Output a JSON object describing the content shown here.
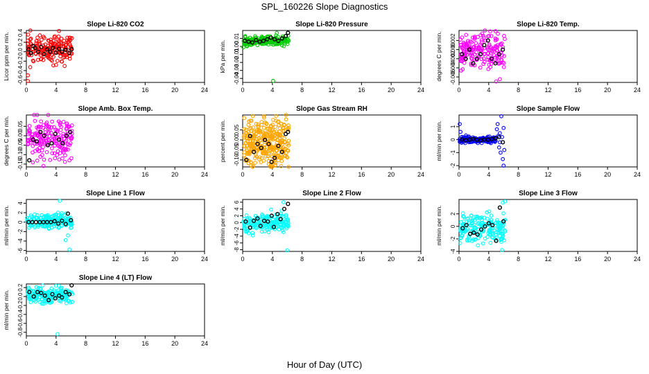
{
  "figure": {
    "title": "SPL_160226  Slope Diagnostics",
    "xlabel": "Hour of Day (UTC)"
  },
  "colors": {
    "axis": "#000000",
    "red": "#ff0000",
    "green": "#00cc00",
    "magenta": "#ff00ff",
    "orange": "#ffa500",
    "blue": "#0000ff",
    "cyan": "#00ffff",
    "black": "#000000"
  },
  "chart_data": [
    {
      "type": "scatter",
      "title": "Slope Li-820 CO2",
      "ylabel": "Licor ppm per min.",
      "xlim": [
        0,
        24
      ],
      "ylim": [
        -0.65,
        0.45
      ],
      "xticks": [
        0,
        4,
        8,
        12,
        16,
        20,
        24
      ],
      "yticks": [
        -0.6,
        -0.4,
        -0.2,
        0.0,
        0.2,
        0.4
      ],
      "color": "red",
      "scatter": {
        "x_range": [
          0.1,
          6.2
        ],
        "y_center": 0.05,
        "y_spread": 0.14,
        "count": 170,
        "seed": 11
      },
      "x_extra": [
        [
          0.2,
          -0.62
        ],
        [
          0.2,
          -0.5
        ],
        [
          4.4,
          0.44
        ],
        [
          4.0,
          -0.28
        ],
        [
          1.5,
          0.3
        ]
      ],
      "black_points": [
        [
          0.3,
          0.05
        ],
        [
          0.6,
          -0.03
        ],
        [
          0.9,
          0.12
        ],
        [
          1.2,
          0.08
        ],
        [
          1.6,
          0.0
        ],
        [
          2.0,
          0.1
        ],
        [
          2.4,
          -0.05
        ],
        [
          2.8,
          0.05
        ],
        [
          3.2,
          0.0
        ],
        [
          3.6,
          0.08
        ],
        [
          4.0,
          -0.02
        ],
        [
          4.4,
          0.06
        ],
        [
          4.8,
          0.0
        ],
        [
          5.3,
          0.04
        ],
        [
          5.8,
          -0.03
        ],
        [
          6.1,
          0.05
        ]
      ]
    },
    {
      "type": "scatter",
      "title": "Slope Li-820 Pressure",
      "ylabel": "kPa per min.",
      "xlim": [
        0,
        24
      ],
      "ylim": [
        -0.045,
        0.02
      ],
      "xticks": [
        0,
        4,
        8,
        12,
        16,
        20,
        24
      ],
      "yticks": [
        -0.04,
        -0.03,
        -0.02,
        -0.01,
        0.0,
        0.01
      ],
      "color": "green",
      "scatter": {
        "x_range": [
          0.1,
          6.2
        ],
        "y_center": 0.007,
        "y_spread": 0.003,
        "count": 170,
        "seed": 23
      },
      "x_extra": [
        [
          0.1,
          -0.001
        ],
        [
          4.1,
          -0.043
        ],
        [
          4.6,
          0.017
        ],
        [
          0.3,
          0.004
        ]
      ],
      "black_points": [
        [
          0.3,
          0.007
        ],
        [
          0.8,
          0.006
        ],
        [
          1.3,
          0.005
        ],
        [
          1.8,
          0.008
        ],
        [
          2.3,
          0.006
        ],
        [
          2.8,
          0.007
        ],
        [
          3.3,
          0.009
        ],
        [
          3.8,
          0.011
        ],
        [
          4.3,
          0.009
        ],
        [
          4.8,
          0.007
        ],
        [
          5.3,
          0.01
        ],
        [
          5.8,
          0.013
        ],
        [
          6.1,
          0.017
        ]
      ]
    },
    {
      "type": "scatter",
      "title": "Slope Li-820 Temp.",
      "ylabel": "degrees C per min.",
      "xlim": [
        0,
        24
      ],
      "ylim": [
        -0.0072,
        0.0042
      ],
      "xticks": [
        0,
        4,
        8,
        12,
        16,
        20,
        24
      ],
      "yticks": [
        -0.006,
        -0.004,
        -0.002,
        0.0,
        0.002
      ],
      "color": "magenta",
      "scatter": {
        "x_range": [
          0.1,
          6.2
        ],
        "y_center": -0.0006,
        "y_spread": 0.0018,
        "count": 180,
        "seed": 37
      },
      "x_extra": [
        [
          5.0,
          -0.007
        ],
        [
          4.2,
          0.004
        ],
        [
          5.5,
          -0.0065
        ]
      ],
      "black_points": [
        [
          0.4,
          -0.001
        ],
        [
          0.9,
          -0.002
        ],
        [
          1.4,
          0.0
        ],
        [
          1.9,
          -0.003
        ],
        [
          2.4,
          -0.002
        ],
        [
          2.9,
          -0.001
        ],
        [
          3.4,
          0.001
        ],
        [
          3.9,
          0.002
        ],
        [
          4.4,
          -0.002
        ],
        [
          4.9,
          -0.003
        ],
        [
          5.4,
          -0.001
        ],
        [
          5.9,
          0.0
        ]
      ]
    },
    {
      "type": "scatter",
      "title": "Slope Amb. Box Temp.",
      "ylabel": "degrees C per min.",
      "xlim": [
        0,
        24
      ],
      "ylim": [
        -0.165,
        0.11
      ],
      "xticks": [
        0,
        4,
        8,
        12,
        16,
        20,
        24
      ],
      "yticks": [
        -0.15,
        -0.1,
        -0.05,
        0.0,
        0.05
      ],
      "color": "magenta",
      "scatter": {
        "x_range": [
          0.1,
          6.2
        ],
        "y_center": -0.015,
        "y_spread": 0.055,
        "count": 180,
        "seed": 41
      },
      "x_extra": [
        [
          2.3,
          -0.16
        ],
        [
          5.8,
          -0.13
        ]
      ],
      "black_points": [
        [
          0.4,
          -0.13
        ],
        [
          0.9,
          -0.02
        ],
        [
          1.4,
          -0.03
        ],
        [
          1.9,
          0.02
        ],
        [
          2.4,
          0.0
        ],
        [
          2.9,
          -0.05
        ],
        [
          3.4,
          -0.04
        ],
        [
          3.9,
          0.01
        ],
        [
          4.4,
          -0.02
        ],
        [
          4.9,
          -0.04
        ],
        [
          5.4,
          0.0
        ],
        [
          5.9,
          0.02
        ]
      ]
    },
    {
      "type": "scatter",
      "title": "Slope Gas Stream RH",
      "ylabel": "percent per min.",
      "xlim": [
        0,
        24
      ],
      "ylim": [
        -0.135,
        0.125
      ],
      "xticks": [
        0,
        4,
        8,
        12,
        16,
        20,
        24
      ],
      "yticks": [
        -0.1,
        -0.05,
        0.0,
        0.05
      ],
      "color": "orange",
      "scatter": {
        "x_range": [
          0.1,
          6.2
        ],
        "y_center": -0.01,
        "y_spread": 0.06,
        "count": 320,
        "seed": 53
      },
      "x_extra": [
        [
          0.2,
          0.11
        ],
        [
          3.8,
          -0.125
        ],
        [
          4.5,
          0.12
        ]
      ],
      "black_points": [
        [
          0.5,
          -0.1
        ],
        [
          1.0,
          0.02
        ],
        [
          1.5,
          -0.06
        ],
        [
          2.0,
          -0.02
        ],
        [
          2.5,
          -0.04
        ],
        [
          3.0,
          0.0
        ],
        [
          3.5,
          -0.02
        ],
        [
          3.9,
          -0.11
        ],
        [
          4.3,
          -0.09
        ],
        [
          4.8,
          -0.03
        ],
        [
          5.3,
          -0.06
        ],
        [
          5.8,
          0.03
        ],
        [
          6.1,
          0.04
        ]
      ]
    },
    {
      "type": "scatter",
      "title": "Slope Sample Flow",
      "ylabel": "ml/min per min.",
      "xlim": [
        0,
        24
      ],
      "ylim": [
        -2.1,
        1.9
      ],
      "xticks": [
        0,
        4,
        8,
        12,
        16,
        20,
        24
      ],
      "yticks": [
        -2,
        -1,
        0,
        1
      ],
      "color": "blue",
      "scatter": {
        "x_range": [
          0.1,
          5.0
        ],
        "y_center": 0.0,
        "y_spread": 0.12,
        "count": 150,
        "seed": 67
      },
      "x_extra": [
        [
          0.1,
          1.2
        ],
        [
          0.2,
          0.6
        ],
        [
          5.1,
          0.8
        ],
        [
          5.2,
          1.2
        ],
        [
          5.4,
          -0.6
        ],
        [
          5.5,
          0.5
        ],
        [
          5.6,
          -1.0
        ],
        [
          5.7,
          1.8
        ],
        [
          5.9,
          -1.5
        ],
        [
          6.0,
          -2.0
        ],
        [
          5.3,
          0.3
        ],
        [
          5.5,
          -0.2
        ],
        [
          5.8,
          0.2
        ],
        [
          6.1,
          -0.8
        ],
        [
          6.0,
          0.9
        ]
      ],
      "black_points": [
        [
          0.4,
          0.0
        ],
        [
          0.9,
          -0.05
        ],
        [
          1.4,
          0.0
        ],
        [
          1.9,
          0.05
        ],
        [
          2.4,
          0.0
        ],
        [
          2.9,
          -0.05
        ],
        [
          3.4,
          0.0
        ],
        [
          3.9,
          0.0
        ],
        [
          4.4,
          0.05
        ],
        [
          4.9,
          0.1
        ],
        [
          5.4,
          0.2
        ],
        [
          5.9,
          -0.2
        ]
      ]
    },
    {
      "type": "scatter",
      "title": "Slope Line 1 Flow",
      "ylabel": "ml/min per min.",
      "xlim": [
        0,
        24
      ],
      "ylim": [
        -6.2,
        4.8
      ],
      "xticks": [
        0,
        4,
        8,
        12,
        16,
        20,
        24
      ],
      "yticks": [
        -6,
        -4,
        -2,
        0,
        2,
        4
      ],
      "color": "cyan",
      "scatter": {
        "x_range": [
          0.1,
          6.2
        ],
        "y_center": 0.2,
        "y_spread": 0.7,
        "count": 180,
        "seed": 71
      },
      "x_extra": [
        [
          4.5,
          4.5
        ],
        [
          5.3,
          -3.8
        ],
        [
          5.8,
          -5.8
        ],
        [
          5.6,
          -2.8
        ]
      ],
      "black_points": [
        [
          0.3,
          0.0
        ],
        [
          0.8,
          0.0
        ],
        [
          1.3,
          0.0
        ],
        [
          1.8,
          0.0
        ],
        [
          2.3,
          0.0
        ],
        [
          2.8,
          0.0
        ],
        [
          3.3,
          0.0
        ],
        [
          3.8,
          0.2
        ],
        [
          4.3,
          -0.3
        ],
        [
          4.8,
          0.3
        ],
        [
          5.3,
          -0.4
        ],
        [
          5.6,
          1.8
        ],
        [
          6.0,
          0.4
        ]
      ]
    },
    {
      "type": "scatter",
      "title": "Slope Line 2 Flow",
      "ylabel": "ml/min per min.",
      "xlim": [
        0,
        24
      ],
      "ylim": [
        -8.5,
        6.8
      ],
      "xticks": [
        0,
        4,
        8,
        12,
        16,
        20,
        24
      ],
      "yticks": [
        -8,
        -6,
        -4,
        -2,
        0,
        2,
        4,
        6
      ],
      "color": "cyan",
      "scatter": {
        "x_range": [
          0.1,
          6.2
        ],
        "y_center": 0.0,
        "y_spread": 1.4,
        "count": 180,
        "seed": 83
      },
      "x_extra": [
        [
          6.0,
          -8.2
        ],
        [
          5.5,
          6.0
        ],
        [
          0.1,
          0.3
        ]
      ],
      "black_points": [
        [
          0.4,
          0.3
        ],
        [
          1.0,
          -1.5
        ],
        [
          1.5,
          0.5
        ],
        [
          2.0,
          1.2
        ],
        [
          2.4,
          -1.0
        ],
        [
          2.9,
          0.5
        ],
        [
          3.4,
          0.3
        ],
        [
          3.9,
          2.0
        ],
        [
          4.2,
          -1.3
        ],
        [
          4.7,
          2.5
        ],
        [
          5.1,
          1.0
        ],
        [
          5.6,
          4.0
        ],
        [
          6.1,
          5.5
        ]
      ]
    },
    {
      "type": "scatter",
      "title": "Slope Line 3 Flow",
      "ylabel": "ml/min per min.",
      "xlim": [
        0,
        24
      ],
      "ylim": [
        -4.0,
        4.3
      ],
      "xticks": [
        0,
        4,
        8,
        12,
        16,
        20,
        24
      ],
      "yticks": [
        -4,
        -2,
        0,
        2
      ],
      "color": "cyan",
      "scatter": {
        "x_range": [
          0.1,
          6.2
        ],
        "y_center": -0.3,
        "y_spread": 1.1,
        "count": 180,
        "seed": 97
      },
      "x_extra": [
        [
          5.8,
          -3.8
        ],
        [
          6.2,
          4.0
        ],
        [
          5.9,
          3.8
        ]
      ],
      "black_points": [
        [
          0.5,
          -0.3
        ],
        [
          1.0,
          0.2
        ],
        [
          1.5,
          -1.2
        ],
        [
          2.0,
          -1.0
        ],
        [
          2.5,
          -1.3
        ],
        [
          3.0,
          -0.5
        ],
        [
          3.5,
          0.0
        ],
        [
          4.0,
          0.5
        ],
        [
          4.5,
          0.2
        ],
        [
          5.0,
          -2.3
        ],
        [
          5.5,
          3.0
        ],
        [
          6.0,
          0.8
        ]
      ]
    },
    {
      "type": "scatter",
      "title": "Slope Line 4 (LT) Flow",
      "ylabel": "ml/min per min.",
      "xlim": [
        0,
        24
      ],
      "ylim": [
        -0.88,
        0.28
      ],
      "xticks": [
        0,
        4,
        8,
        12,
        16,
        20,
        24
      ],
      "yticks": [
        -0.8,
        -0.6,
        -0.4,
        -0.2,
        0.0,
        0.2
      ],
      "color": "cyan",
      "scatter": {
        "x_range": [
          0.1,
          6.2
        ],
        "y_center": 0.03,
        "y_spread": 0.09,
        "count": 170,
        "seed": 101
      },
      "x_extra": [
        [
          4.2,
          -0.84
        ],
        [
          4.0,
          0.24
        ],
        [
          0.3,
          0.2
        ]
      ],
      "black_points": [
        [
          0.4,
          0.1
        ],
        [
          1.0,
          0.0
        ],
        [
          1.5,
          0.1
        ],
        [
          2.0,
          0.08
        ],
        [
          2.5,
          0.02
        ],
        [
          3.0,
          -0.08
        ],
        [
          3.5,
          0.05
        ],
        [
          3.9,
          -0.04
        ],
        [
          4.4,
          0.02
        ],
        [
          4.8,
          -0.02
        ],
        [
          5.3,
          0.1
        ],
        [
          5.8,
          0.05
        ],
        [
          6.1,
          0.25
        ]
      ]
    }
  ]
}
